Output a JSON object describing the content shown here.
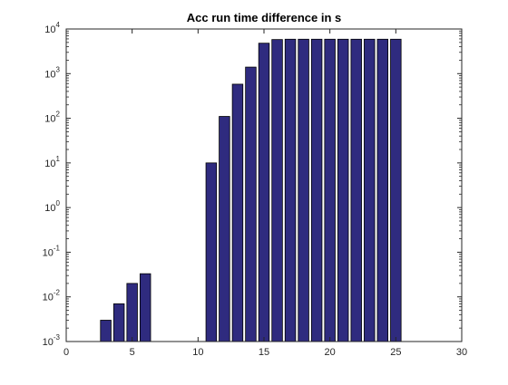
{
  "chart_data": {
    "type": "bar",
    "title": "Acc run time difference in s",
    "xlabel": "",
    "ylabel": "",
    "x_range": [
      0,
      30
    ],
    "y_range": [
      0.001,
      10000
    ],
    "y_scale": "log",
    "grid": false,
    "legend": "none",
    "x_ticks": [
      {
        "value": 0,
        "label": "0"
      },
      {
        "value": 5,
        "label": "5"
      },
      {
        "value": 10,
        "label": "10"
      },
      {
        "value": 15,
        "label": "15"
      },
      {
        "value": 20,
        "label": "20"
      },
      {
        "value": 25,
        "label": "25"
      },
      {
        "value": 30,
        "label": "30"
      }
    ],
    "y_ticks": [
      {
        "value": 0.001,
        "base": "10",
        "exp": "-3"
      },
      {
        "value": 0.01,
        "base": "10",
        "exp": "-2"
      },
      {
        "value": 0.1,
        "base": "10",
        "exp": "-1"
      },
      {
        "value": 1,
        "base": "10",
        "exp": "0"
      },
      {
        "value": 10,
        "base": "10",
        "exp": "1"
      },
      {
        "value": 100,
        "base": "10",
        "exp": "2"
      },
      {
        "value": 1000,
        "base": "10",
        "exp": "3"
      },
      {
        "value": 10000,
        "base": "10",
        "exp": "4"
      }
    ],
    "bar_width": 0.8,
    "bar_color": "#2f2b7f",
    "bar_edge_color": "#000000",
    "bars": [
      {
        "x": 3,
        "value": 0.003
      },
      {
        "x": 4,
        "value": 0.007
      },
      {
        "x": 5,
        "value": 0.02
      },
      {
        "x": 6,
        "value": 0.033
      },
      {
        "x": 11,
        "value": 10
      },
      {
        "x": 12,
        "value": 110
      },
      {
        "x": 13,
        "value": 580
      },
      {
        "x": 14,
        "value": 1400
      },
      {
        "x": 15,
        "value": 4800
      },
      {
        "x": 16,
        "value": 5800
      },
      {
        "x": 17,
        "value": 5900
      },
      {
        "x": 18,
        "value": 5900
      },
      {
        "x": 19,
        "value": 5900
      },
      {
        "x": 20,
        "value": 5900
      },
      {
        "x": 21,
        "value": 5900
      },
      {
        "x": 22,
        "value": 5900
      },
      {
        "x": 23,
        "value": 5900
      },
      {
        "x": 24,
        "value": 5900
      },
      {
        "x": 25,
        "value": 5900
      }
    ]
  }
}
